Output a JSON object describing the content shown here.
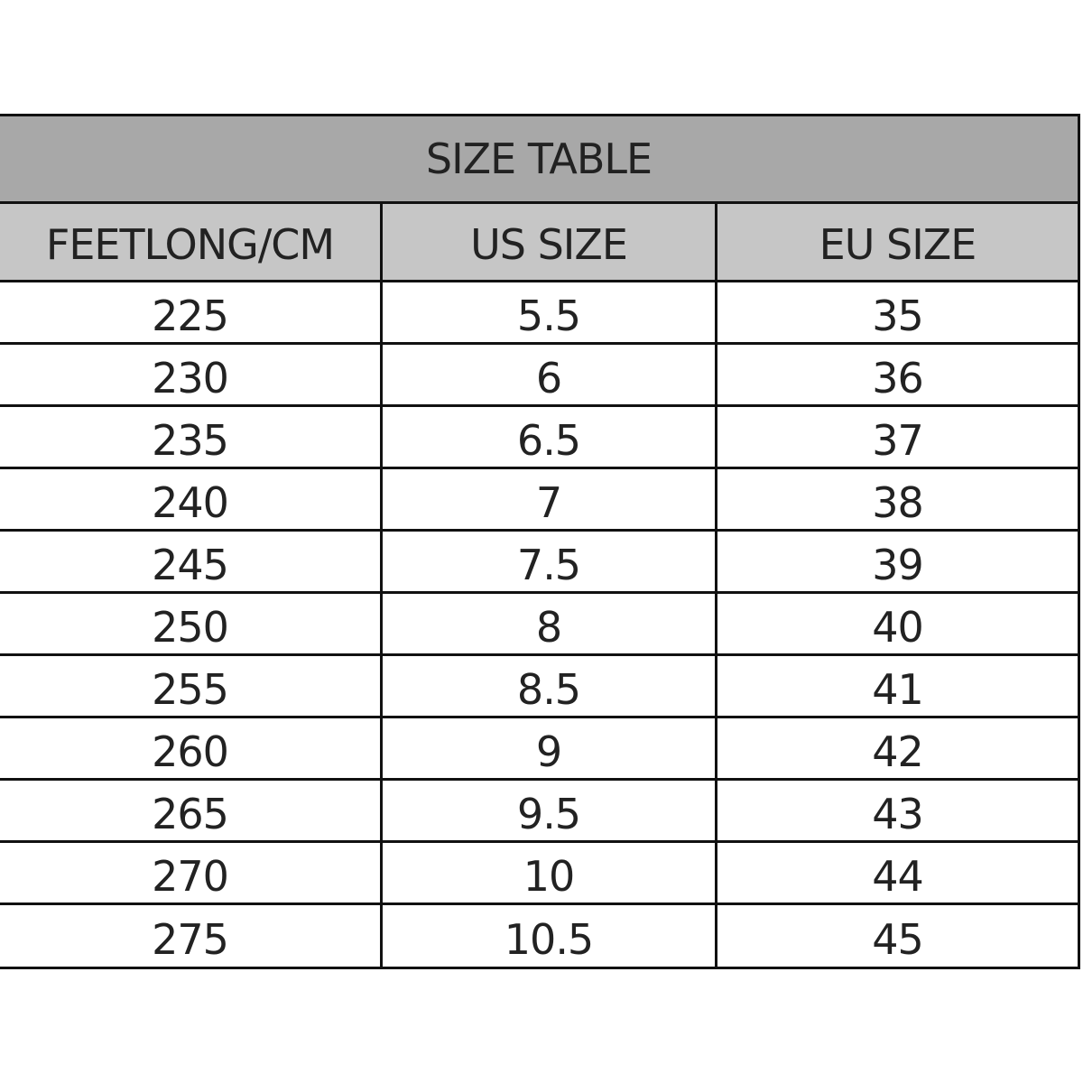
{
  "title": "SIZE TABLE",
  "headers": [
    "FEETLONG/CM",
    "US SIZE",
    "EU SIZE"
  ],
  "rows": [
    [
      "225",
      "5.5",
      "35"
    ],
    [
      "230",
      "6",
      "36"
    ],
    [
      "235",
      "6.5",
      "37"
    ],
    [
      "240",
      "7",
      "38"
    ],
    [
      "245",
      "7.5",
      "39"
    ],
    [
      "250",
      "8",
      "40"
    ],
    [
      "255",
      "8.5",
      "41"
    ],
    [
      "260",
      "9",
      "42"
    ],
    [
      "265",
      "9.5",
      "43"
    ],
    [
      "270",
      "10",
      "44"
    ],
    [
      "275",
      "10.5",
      "45"
    ]
  ],
  "colors": {
    "title_bg": "#a8a8a8",
    "header_bg": "#c6c6c6",
    "border": "#111111"
  }
}
